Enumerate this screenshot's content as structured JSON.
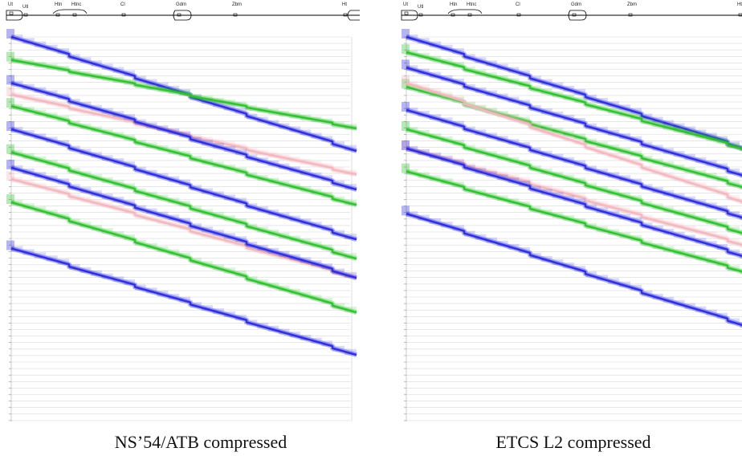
{
  "track_stations": [
    "Ut",
    "Utl",
    "Htn",
    "Htnc",
    "Cl",
    "Gdm",
    "Zbm",
    "Ht"
  ],
  "colors": {
    "blue": "#2b2bdc",
    "green": "#2fc02f",
    "pink": "#f2b7bf",
    "grid": "#d8d8d8"
  },
  "chart_data": [
    {
      "type": "line",
      "title": "NS’54/ATB compressed",
      "xlabel": "",
      "ylabel": "",
      "x": [
        "Ut",
        "Utl",
        "Htn",
        "Htnc",
        "Cl",
        "Gdm",
        "Zbm",
        "Ht"
      ],
      "grid": true,
      "series": [
        {
          "color": "blue",
          "y_start": 0.0,
          "y_end": 0.3
        },
        {
          "color": "green",
          "y_start": 0.06,
          "y_end": 0.24
        },
        {
          "color": "pink",
          "y_start": 0.15,
          "y_end": 0.36
        },
        {
          "color": "blue",
          "y_start": 0.12,
          "y_end": 0.4
        },
        {
          "color": "green",
          "y_start": 0.18,
          "y_end": 0.44
        },
        {
          "color": "blue",
          "y_start": 0.24,
          "y_end": 0.53
        },
        {
          "color": "green",
          "y_start": 0.3,
          "y_end": 0.58
        },
        {
          "color": "pink",
          "y_start": 0.37,
          "y_end": 0.63
        },
        {
          "color": "blue",
          "y_start": 0.34,
          "y_end": 0.63
        },
        {
          "color": "green",
          "y_start": 0.43,
          "y_end": 0.72
        },
        {
          "color": "blue",
          "y_start": 0.55,
          "y_end": 0.83
        }
      ]
    },
    {
      "type": "line",
      "title": "ETCS L2 compressed",
      "xlabel": "",
      "ylabel": "",
      "x": [
        "Ut",
        "Utl",
        "Htn",
        "Htnc",
        "Cl",
        "Gdm",
        "Zbm",
        "Ht"
      ],
      "grid": true,
      "series": [
        {
          "color": "blue",
          "y_start": 0.0,
          "y_end": 0.3
        },
        {
          "color": "green",
          "y_start": 0.04,
          "y_end": 0.3
        },
        {
          "color": "blue",
          "y_start": 0.08,
          "y_end": 0.37
        },
        {
          "color": "green",
          "y_start": 0.13,
          "y_end": 0.4
        },
        {
          "color": "pink",
          "y_start": 0.12,
          "y_end": 0.44
        },
        {
          "color": "blue",
          "y_start": 0.19,
          "y_end": 0.48
        },
        {
          "color": "green",
          "y_start": 0.24,
          "y_end": 0.52
        },
        {
          "color": "pink",
          "y_start": 0.29,
          "y_end": 0.55
        },
        {
          "color": "blue",
          "y_start": 0.29,
          "y_end": 0.58
        },
        {
          "color": "green",
          "y_start": 0.35,
          "y_end": 0.62
        },
        {
          "color": "blue",
          "y_start": 0.46,
          "y_end": 0.76
        }
      ]
    }
  ]
}
